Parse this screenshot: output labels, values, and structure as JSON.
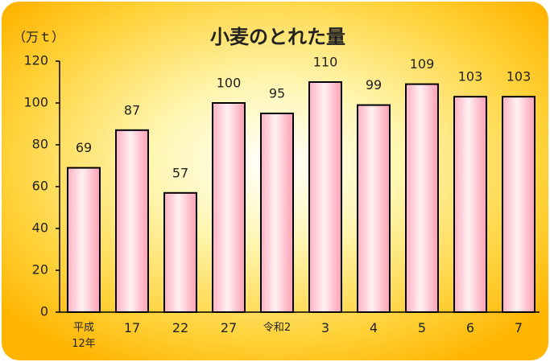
{
  "chart_data": {
    "type": "bar",
    "title": "小麦のとれた量",
    "y_axis_label": "（万ｔ）",
    "categories": [
      "平成\n12年",
      "17",
      "22",
      "27",
      "令和2",
      "3",
      "4",
      "5",
      "6",
      "7"
    ],
    "values": [
      69,
      87,
      57,
      100,
      95,
      110,
      99,
      109,
      103,
      103
    ],
    "color": "#ffb8c4",
    "ylim": [
      0,
      120
    ],
    "yticks": [
      0,
      20,
      40,
      60,
      80,
      100,
      120
    ],
    "grid": false
  }
}
